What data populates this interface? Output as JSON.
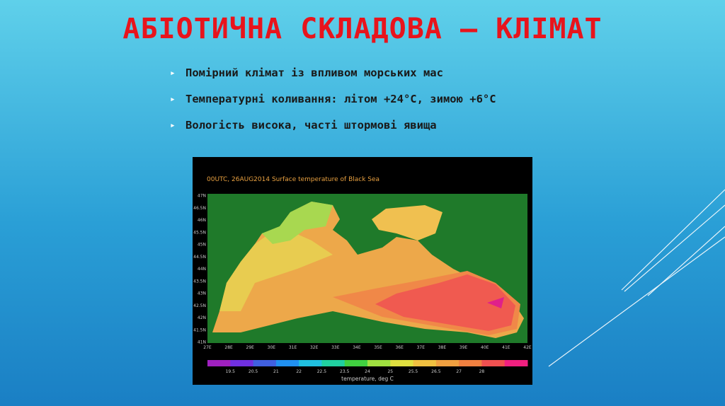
{
  "slide": {
    "title": "АБІОТИЧНА СКЛАДОВА – КЛІМАТ",
    "bullets": [
      "Помірний клімат із впливом морських мас",
      "Температурні коливання: літом +24°С, зимою +6°С",
      "Вологість висока, часті штормові явища"
    ]
  },
  "map": {
    "caption": "00UTC, 26AUG2014  Surface temperature of Black Sea",
    "lat_labels": [
      "47N",
      "46.5N",
      "46N",
      "45.5N",
      "45N",
      "44.5N",
      "44N",
      "43.5N",
      "43N",
      "42.5N",
      "42N",
      "41.5N",
      "41N"
    ],
    "lon_labels": [
      "27E",
      "28E",
      "29E",
      "30E",
      "31E",
      "32E",
      "33E",
      "34E",
      "35E",
      "36E",
      "37E",
      "38E",
      "39E",
      "40E",
      "41E",
      "42E"
    ],
    "colorbar_labels": [
      "19.5",
      "20.5",
      "21",
      "22",
      "22.5",
      "23.5",
      "24",
      "25",
      "25.5",
      "26.5",
      "27",
      "28"
    ],
    "colorbar_title": "temperature, deg C"
  }
}
